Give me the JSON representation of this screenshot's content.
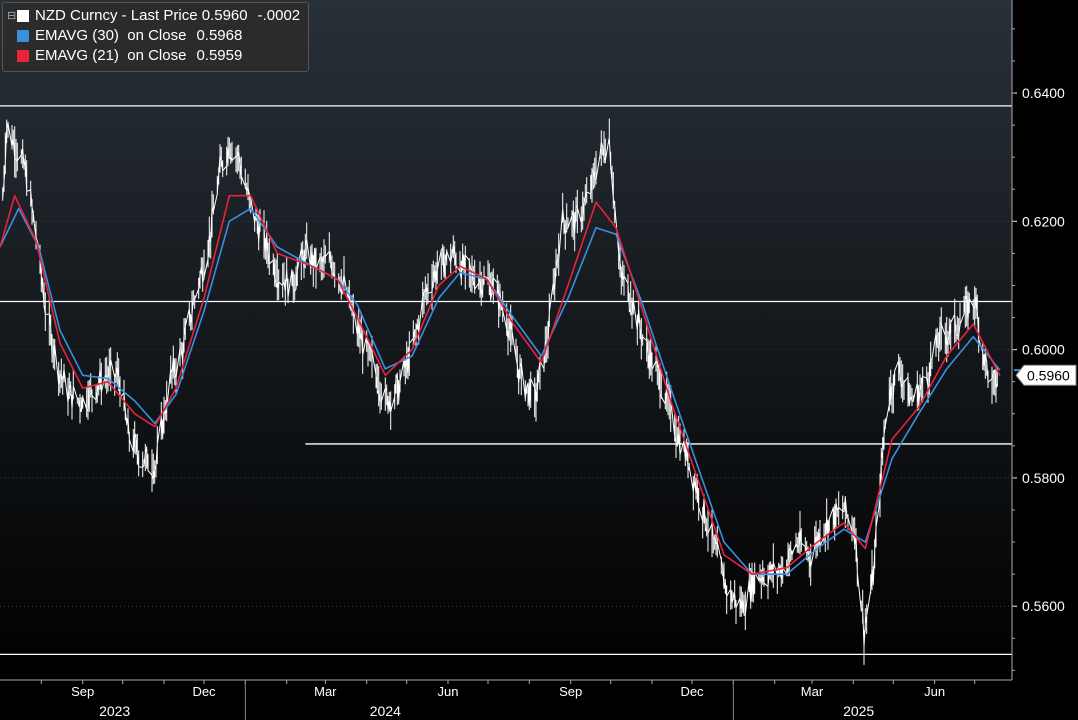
{
  "chart_data": {
    "type": "line",
    "colors": {
      "price": "#ffffff",
      "ema30": "#3a8fe0",
      "ema21": "#e8233a",
      "background": "#000000",
      "price_tag": "#3a8fe0"
    },
    "legend": [
      {
        "name": "NZD Curncy - Last Price",
        "value": "0.5960",
        "change": "-.0002",
        "color": "#ffffff"
      },
      {
        "name": "EMAVG (30)  on Close",
        "value": "0.5968",
        "color": "#3a8fe0"
      },
      {
        "name": "EMAVG (21)  on Close",
        "value": "0.5959",
        "color": "#e8233a"
      }
    ],
    "last_price_label": "0.5960",
    "ylim": [
      0.5485,
      0.6545
    ],
    "y_ticks": [
      "0.6400",
      "0.6200",
      "0.6000",
      "0.5800",
      "0.5600"
    ],
    "x_month_labels": [
      "Sep",
      "Dec",
      "Mar",
      "Jun",
      "Sep",
      "Dec",
      "Mar",
      "Jun"
    ],
    "x_year_labels": [
      "2023",
      "2024",
      "2025"
    ],
    "x_range": [
      "2023-07-01",
      "2025-07-20"
    ],
    "horizontal_levels": [
      {
        "y": 0.638,
        "from": "2023-07-01"
      },
      {
        "y": 0.6075,
        "from": "2023-07-01"
      },
      {
        "y": 0.5853,
        "from": "2024-02-15"
      },
      {
        "y": 0.5525,
        "from": "2023-07-01"
      }
    ],
    "grid": true,
    "price_keypoints": [
      [
        "2023-07-01",
        0.616
      ],
      [
        "2023-07-06",
        0.635
      ],
      [
        "2023-07-12",
        0.632
      ],
      [
        "2023-07-20",
        0.628
      ],
      [
        "2023-07-28",
        0.618
      ],
      [
        "2023-08-05",
        0.605
      ],
      [
        "2023-08-14",
        0.597
      ],
      [
        "2023-08-22",
        0.593
      ],
      [
        "2023-09-01",
        0.592
      ],
      [
        "2023-09-10",
        0.594
      ],
      [
        "2023-09-18",
        0.596
      ],
      [
        "2023-09-28",
        0.596
      ],
      [
        "2023-10-05",
        0.587
      ],
      [
        "2023-10-15",
        0.583
      ],
      [
        "2023-10-26",
        0.582
      ],
      [
        "2023-11-05",
        0.595
      ],
      [
        "2023-11-15",
        0.6
      ],
      [
        "2023-11-24",
        0.608
      ],
      [
        "2023-12-05",
        0.617
      ],
      [
        "2023-12-13",
        0.628
      ],
      [
        "2023-12-20",
        0.632
      ],
      [
        "2023-12-27",
        0.63
      ],
      [
        "2024-01-04",
        0.623
      ],
      [
        "2024-01-15",
        0.617
      ],
      [
        "2024-01-25",
        0.612
      ],
      [
        "2024-02-05",
        0.61
      ],
      [
        "2024-02-15",
        0.615
      ],
      [
        "2024-02-25",
        0.613
      ],
      [
        "2024-03-05",
        0.614
      ],
      [
        "2024-03-15",
        0.61
      ],
      [
        "2024-03-25",
        0.603
      ],
      [
        "2024-04-05",
        0.598
      ],
      [
        "2024-04-15",
        0.592
      ],
      [
        "2024-04-25",
        0.594
      ],
      [
        "2024-05-05",
        0.6
      ],
      [
        "2024-05-15",
        0.609
      ],
      [
        "2024-05-25",
        0.613
      ],
      [
        "2024-06-05",
        0.615
      ],
      [
        "2024-06-15",
        0.612
      ],
      [
        "2024-06-25",
        0.611
      ],
      [
        "2024-07-05",
        0.61
      ],
      [
        "2024-07-15",
        0.605
      ],
      [
        "2024-07-25",
        0.596
      ],
      [
        "2024-08-05",
        0.592
      ],
      [
        "2024-08-15",
        0.602
      ],
      [
        "2024-08-25",
        0.62
      ],
      [
        "2024-09-05",
        0.62
      ],
      [
        "2024-09-15",
        0.624
      ],
      [
        "2024-09-22",
        0.63
      ],
      [
        "2024-09-30",
        0.633
      ],
      [
        "2024-10-08",
        0.612
      ],
      [
        "2024-10-18",
        0.607
      ],
      [
        "2024-10-28",
        0.6
      ],
      [
        "2024-11-08",
        0.595
      ],
      [
        "2024-11-18",
        0.588
      ],
      [
        "2024-11-28",
        0.583
      ],
      [
        "2024-12-08",
        0.576
      ],
      [
        "2024-12-18",
        0.569
      ],
      [
        "2024-12-28",
        0.562
      ],
      [
        "2025-01-08",
        0.56
      ],
      [
        "2025-01-18",
        0.565
      ],
      [
        "2025-01-28",
        0.565
      ],
      [
        "2025-02-08",
        0.566
      ],
      [
        "2025-02-18",
        0.57
      ],
      [
        "2025-02-28",
        0.568
      ],
      [
        "2025-03-08",
        0.572
      ],
      [
        "2025-03-18",
        0.574
      ],
      [
        "2025-03-25",
        0.575
      ],
      [
        "2025-04-02",
        0.572
      ],
      [
        "2025-04-09",
        0.556
      ],
      [
        "2025-04-16",
        0.565
      ],
      [
        "2025-04-26",
        0.592
      ],
      [
        "2025-05-05",
        0.597
      ],
      [
        "2025-05-15",
        0.592
      ],
      [
        "2025-05-25",
        0.595
      ],
      [
        "2025-06-05",
        0.602
      ],
      [
        "2025-06-15",
        0.603
      ],
      [
        "2025-06-25",
        0.606
      ],
      [
        "2025-07-01",
        0.608
      ],
      [
        "2025-07-08",
        0.599
      ],
      [
        "2025-07-14",
        0.594
      ],
      [
        "2025-07-20",
        0.596
      ]
    ],
    "ema30_keypoints": [
      [
        "2023-07-01",
        0.616
      ],
      [
        "2023-07-15",
        0.622
      ],
      [
        "2023-07-30",
        0.616
      ],
      [
        "2023-08-15",
        0.603
      ],
      [
        "2023-09-01",
        0.596
      ],
      [
        "2023-09-20",
        0.5955
      ],
      [
        "2023-10-10",
        0.592
      ],
      [
        "2023-10-25",
        0.5885
      ],
      [
        "2023-11-10",
        0.593
      ],
      [
        "2023-12-01",
        0.606
      ],
      [
        "2023-12-20",
        0.62
      ],
      [
        "2024-01-05",
        0.622
      ],
      [
        "2024-01-25",
        0.616
      ],
      [
        "2024-02-20",
        0.613
      ],
      [
        "2024-03-10",
        0.611
      ],
      [
        "2024-03-25",
        0.607
      ],
      [
        "2024-04-15",
        0.597
      ],
      [
        "2024-05-05",
        0.599
      ],
      [
        "2024-05-25",
        0.608
      ],
      [
        "2024-06-10",
        0.612
      ],
      [
        "2024-06-30",
        0.611
      ],
      [
        "2024-07-20",
        0.605
      ],
      [
        "2024-08-10",
        0.599
      ],
      [
        "2024-08-30",
        0.608
      ],
      [
        "2024-09-20",
        0.619
      ],
      [
        "2024-10-05",
        0.618
      ],
      [
        "2024-10-25",
        0.607
      ],
      [
        "2024-11-15",
        0.594
      ],
      [
        "2024-12-05",
        0.582
      ],
      [
        "2024-12-25",
        0.57
      ],
      [
        "2025-01-15",
        0.565
      ],
      [
        "2025-02-10",
        0.565
      ],
      [
        "2025-03-05",
        0.569
      ],
      [
        "2025-03-25",
        0.572
      ],
      [
        "2025-04-10",
        0.57
      ],
      [
        "2025-04-30",
        0.583
      ],
      [
        "2025-05-20",
        0.59
      ],
      [
        "2025-06-10",
        0.597
      ],
      [
        "2025-06-30",
        0.602
      ],
      [
        "2025-07-20",
        0.5968
      ]
    ],
    "ema21_keypoints": [
      [
        "2023-07-01",
        0.616
      ],
      [
        "2023-07-12",
        0.624
      ],
      [
        "2023-07-28",
        0.617
      ],
      [
        "2023-08-15",
        0.601
      ],
      [
        "2023-09-01",
        0.594
      ],
      [
        "2023-09-20",
        0.595
      ],
      [
        "2023-10-10",
        0.59
      ],
      [
        "2023-10-25",
        0.588
      ],
      [
        "2023-11-10",
        0.594
      ],
      [
        "2023-12-01",
        0.608
      ],
      [
        "2023-12-20",
        0.624
      ],
      [
        "2024-01-05",
        0.624
      ],
      [
        "2024-01-25",
        0.615
      ],
      [
        "2024-02-20",
        0.613
      ],
      [
        "2024-03-10",
        0.611
      ],
      [
        "2024-03-25",
        0.605
      ],
      [
        "2024-04-15",
        0.596
      ],
      [
        "2024-05-05",
        0.6
      ],
      [
        "2024-05-25",
        0.61
      ],
      [
        "2024-06-10",
        0.613
      ],
      [
        "2024-06-30",
        0.611
      ],
      [
        "2024-07-20",
        0.604
      ],
      [
        "2024-08-10",
        0.598
      ],
      [
        "2024-08-30",
        0.61
      ],
      [
        "2024-09-20",
        0.623
      ],
      [
        "2024-10-05",
        0.619
      ],
      [
        "2024-10-25",
        0.606
      ],
      [
        "2024-11-15",
        0.592
      ],
      [
        "2024-12-05",
        0.58
      ],
      [
        "2024-12-25",
        0.568
      ],
      [
        "2025-01-15",
        0.565
      ],
      [
        "2025-02-10",
        0.566
      ],
      [
        "2025-03-05",
        0.57
      ],
      [
        "2025-03-25",
        0.573
      ],
      [
        "2025-04-10",
        0.569
      ],
      [
        "2025-04-30",
        0.586
      ],
      [
        "2025-05-20",
        0.591
      ],
      [
        "2025-06-10",
        0.599
      ],
      [
        "2025-06-30",
        0.604
      ],
      [
        "2025-07-20",
        0.5959
      ]
    ]
  }
}
